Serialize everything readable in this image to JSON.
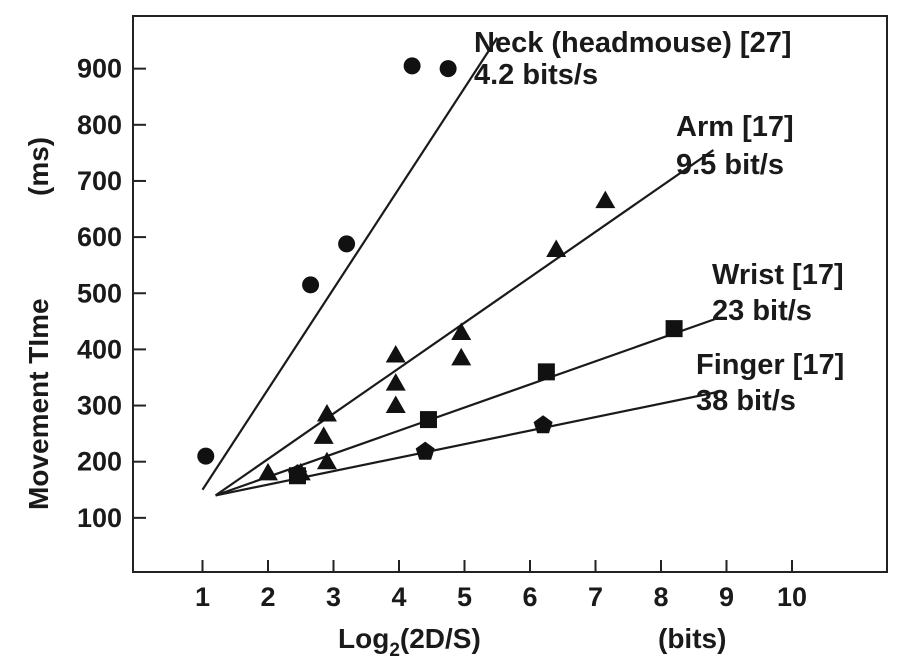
{
  "chart_data": {
    "type": "scatter",
    "xlabel": "Log",
    "xlabel_sub": "2",
    "xlabel_rest": "(2D/S)",
    "xunit": "(bits)",
    "ylabel": "Movement TIme",
    "yunit": "(ms)",
    "xlim": [
      0,
      11.2
    ],
    "ylim": [
      0,
      1000
    ],
    "xticks": [
      "1",
      "2",
      "3",
      "4",
      "5",
      "6",
      "7",
      "8",
      "9",
      "10"
    ],
    "yticks": [
      "100",
      "200",
      "300",
      "400",
      "500",
      "600",
      "700",
      "800",
      "900"
    ],
    "series": [
      {
        "name": "Neck (headmouse) [27]",
        "rate": "4.2 bits/s",
        "marker": "circle",
        "points": [
          [
            1.05,
            210
          ],
          [
            2.65,
            515
          ],
          [
            3.2,
            588
          ],
          [
            4.2,
            905
          ],
          [
            4.75,
            900
          ]
        ],
        "fit": [
          [
            1.0,
            150
          ],
          [
            5.5,
            955
          ]
        ]
      },
      {
        "name": "Arm [17]",
        "rate": "9.5 bit/s",
        "marker": "triangle",
        "points": [
          [
            2.0,
            180
          ],
          [
            2.5,
            180
          ],
          [
            2.9,
            200
          ],
          [
            2.85,
            245
          ],
          [
            2.9,
            285
          ],
          [
            3.95,
            300
          ],
          [
            3.95,
            340
          ],
          [
            3.95,
            390
          ],
          [
            4.95,
            385
          ],
          [
            4.95,
            430
          ],
          [
            6.4,
            578
          ],
          [
            7.15,
            665
          ]
        ],
        "fit": [
          [
            1.2,
            140
          ],
          [
            8.8,
            755
          ]
        ]
      },
      {
        "name": "Wrist [17]",
        "rate": "23 bit/s",
        "marker": "square",
        "points": [
          [
            2.45,
            175
          ],
          [
            4.45,
            275
          ],
          [
            6.25,
            360
          ],
          [
            8.2,
            437
          ]
        ],
        "fit": [
          [
            1.2,
            140
          ],
          [
            8.85,
            455
          ]
        ]
      },
      {
        "name": "Finger [17]",
        "rate": "38 bit/s",
        "marker": "pentagon",
        "points": [
          [
            2.45,
            178
          ],
          [
            4.4,
            218
          ],
          [
            6.2,
            265
          ]
        ],
        "fit": [
          [
            1.2,
            140
          ],
          [
            8.9,
            325
          ]
        ]
      }
    ]
  }
}
